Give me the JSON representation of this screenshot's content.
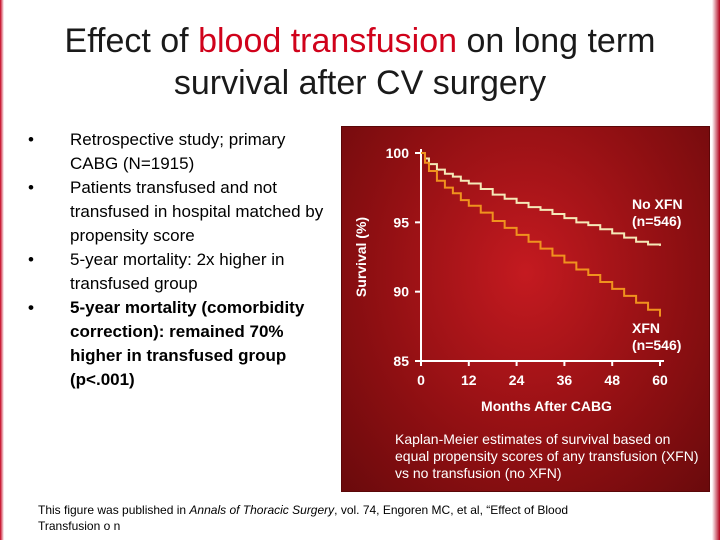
{
  "title": {
    "part1": "Effect of ",
    "highlight": "blood transfusion",
    "part2": " on long term survival after CV surgery"
  },
  "bullets": [
    {
      "text": "Retrospective study; primary CABG (N=1915)",
      "bold": false
    },
    {
      "text": "Patients transfused and not transfused in hospital matched by propensity score",
      "bold": false
    },
    {
      "text": "5-year mortality: 2x higher in transfused group",
      "bold": false
    },
    {
      "text": "5-year mortality (comorbidity correction): remained 70% higher in transfused group (p<.001)",
      "bold": true
    }
  ],
  "bullet_symbol": "•",
  "chart_data": {
    "type": "line",
    "xlabel": "Months After CABG",
    "ylabel": "Survival (%)",
    "xlim": [
      0,
      60
    ],
    "ylim": [
      85,
      100
    ],
    "xticks": [
      0,
      12,
      24,
      36,
      48,
      60
    ],
    "yticks": [
      85,
      90,
      95,
      100
    ],
    "series": [
      {
        "name": "No XFN (n=546)",
        "label_lines": [
          "No XFN",
          "(n=546)"
        ],
        "color": "#f5e9b8",
        "x": [
          0,
          1,
          2,
          4,
          6,
          8,
          10,
          12,
          15,
          18,
          21,
          24,
          27,
          30,
          33,
          36,
          39,
          42,
          45,
          48,
          51,
          54,
          57,
          60
        ],
        "y": [
          100,
          99.6,
          99.2,
          98.8,
          98.5,
          98.3,
          98.0,
          97.8,
          97.4,
          97.0,
          96.7,
          96.4,
          96.1,
          95.9,
          95.6,
          95.3,
          95.0,
          94.8,
          94.5,
          94.2,
          93.9,
          93.6,
          93.4,
          93.3
        ]
      },
      {
        "name": "XFN (n=546)",
        "label_lines": [
          "XFN",
          "(n=546)"
        ],
        "color": "#f0921e",
        "x": [
          0,
          1,
          2,
          4,
          6,
          8,
          10,
          12,
          15,
          18,
          21,
          24,
          27,
          30,
          33,
          36,
          39,
          42,
          45,
          48,
          51,
          54,
          57,
          60
        ],
        "y": [
          100,
          99.3,
          98.7,
          98.0,
          97.5,
          97.1,
          96.6,
          96.2,
          95.7,
          95.1,
          94.6,
          94.1,
          93.6,
          93.1,
          92.6,
          92.1,
          91.6,
          91.2,
          90.7,
          90.2,
          89.7,
          89.2,
          88.7,
          88.2
        ]
      }
    ],
    "grid": false,
    "legend": "inline-right"
  },
  "figure_caption": "Kaplan-Meier estimates of survival based on equal propensity scores of any transfusion (XFN) vs no transfusion (no XFN)",
  "footer": {
    "prefix": "This figure was published in ",
    "journal": "Annals of Thoracic Surgery",
    "suffix": ", vol. 74, Engoren MC, et al, “Effect of Blood",
    "line2": "Transfusion o n"
  },
  "colors": {
    "title_highlight": "#d0021b",
    "figure_bg": "#a51418",
    "axis": "#ffffff"
  }
}
